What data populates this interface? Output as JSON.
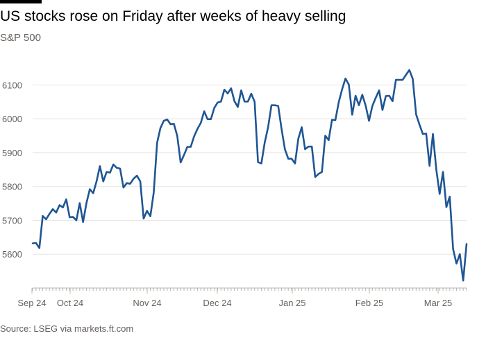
{
  "header": {
    "title": "US stocks rose on Friday after weeks of heavy selling",
    "subtitle": "S&P 500"
  },
  "footer": {
    "source": "Source: LSEG via markets.ft.com"
  },
  "colors": {
    "line": "#1f5594",
    "grid": "#e7e3df",
    "axis": "#b9b4af",
    "tick_text": "#66605c"
  },
  "chart_data": {
    "type": "line",
    "title": "US stocks rose on Friday after weeks of heavy selling",
    "subtitle": "S&P 500",
    "ylim": [
      5500,
      6150
    ],
    "yticks": [
      5600,
      5700,
      5800,
      5900,
      6000,
      6100
    ],
    "x_labels": [
      "Sep 24",
      "Oct 24",
      "Nov 24",
      "Dec 24",
      "Jan 25",
      "Feb 25",
      "Mar 25"
    ],
    "grid": true,
    "legend": "none",
    "series": [
      {
        "values": [
          5632,
          5633,
          5618,
          5713,
          5703,
          5719,
          5733,
          5723,
          5745,
          5738,
          5762,
          5709,
          5710,
          5700,
          5751,
          5695,
          5751,
          5792,
          5780,
          5815,
          5860,
          5815,
          5843,
          5841,
          5865,
          5855,
          5853,
          5797,
          5810,
          5808,
          5823,
          5832,
          5815,
          5705,
          5728,
          5712,
          5782,
          5929,
          5973,
          5994,
          5998,
          5984,
          5985,
          5949,
          5871,
          5893,
          5917,
          5917,
          5948,
          5970,
          5988,
          6022,
          5999,
          5999,
          6032,
          6048,
          6051,
          6086,
          6075,
          6090,
          6052,
          6035,
          6084,
          6051,
          6051,
          6074,
          6050,
          5872,
          5868,
          5930,
          5975,
          6040,
          6040,
          6038,
          5970,
          5910,
          5882,
          5882,
          5868,
          5942,
          5975,
          5910,
          5918,
          5918,
          5828,
          5837,
          5843,
          5950,
          5937,
          5997,
          5996,
          6049,
          6087,
          6119,
          6101,
          6012,
          6068,
          6040,
          6071,
          6039,
          5994,
          6038,
          6062,
          6084,
          6026,
          6067,
          6068,
          6052,
          6115,
          6115,
          6115,
          6130,
          6144,
          6118,
          6013,
          5983,
          5955,
          5956,
          5861,
          5955,
          5850,
          5778,
          5843,
          5739,
          5770,
          5615,
          5572,
          5600,
          5522,
          5630
        ]
      }
    ]
  }
}
